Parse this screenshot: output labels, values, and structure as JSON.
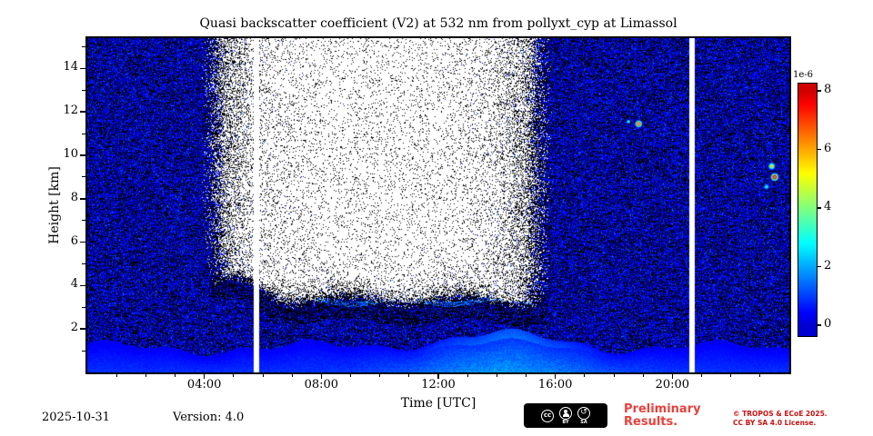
{
  "chart_data": {
    "type": "heatmap",
    "title": "Quasi backscatter coefficient (V2) at 532 nm from pollyxt_cyp at Limassol",
    "xlabel": "Time [UTC]",
    "ylabel": "Height [km]",
    "x_range_hours": [
      0,
      24
    ],
    "x_ticks": [
      {
        "hour": 4,
        "label": "04:00"
      },
      {
        "hour": 8,
        "label": "08:00"
      },
      {
        "hour": 12,
        "label": "12:00"
      },
      {
        "hour": 16,
        "label": "16:00"
      },
      {
        "hour": 20,
        "label": "20:00"
      }
    ],
    "x_minor_step_hours": 1,
    "y_range_km": [
      0,
      15.4
    ],
    "y_ticks": [
      2,
      4,
      6,
      8,
      10,
      12,
      14
    ],
    "y_minor_step_km": 1,
    "colorbar": {
      "exponent_label": "1e-6",
      "ticks": [
        0,
        2,
        4,
        6,
        8
      ],
      "vmin": 0,
      "vmax": 8,
      "colormap": "jet"
    },
    "features": {
      "background_noise": {
        "description": "speckled low molecular backscatter, blue with black shot noise",
        "value_range_1e6": [
          0,
          1.1
        ],
        "black_fraction": 0.4
      },
      "masked_daytime_region": {
        "description": "white no-data / low-SNR daytime region",
        "time_start_h": 4.3,
        "time_end_h": 15.45,
        "bottom_km": 3.35
      },
      "gaps_hours": [
        5.66,
        20.55
      ],
      "gap_width_hours": 0.2,
      "surface_layer": {
        "description": "boundary-layer aerosol near surface",
        "top_km_base": 1.15,
        "base_1e6": 0.85,
        "midday_boost_1e6": 0.95,
        "peak_time_h": 14.2
      },
      "aerosol_streak": {
        "description": "thin faint aerosol layer below masked region",
        "height_km": 3.3,
        "time_start_h": 7.3,
        "time_end_h": 15.2,
        "value_1e6": 1.5
      },
      "hotspots": [
        {
          "time_h": 18.85,
          "height_km": 11.45,
          "peak_1e6": 7
        },
        {
          "time_h": 23.4,
          "height_km": 9.0,
          "peak_1e6": 8
        }
      ]
    }
  },
  "footer": {
    "date": "2025-10-31",
    "version": "Version: 4.0",
    "preliminary": "Preliminary Results.",
    "copyright": "© TROPOS & ECoE 2025.",
    "license": "CC BY SA 4.0 License.",
    "cc": "cc",
    "by": "BY",
    "sa": "SA",
    "sa_arrow": "↺"
  },
  "colors": {
    "preliminary_red": "#e8413c",
    "copyright_red": "#cc1111",
    "axis": "#000000",
    "background": "#ffffff"
  }
}
